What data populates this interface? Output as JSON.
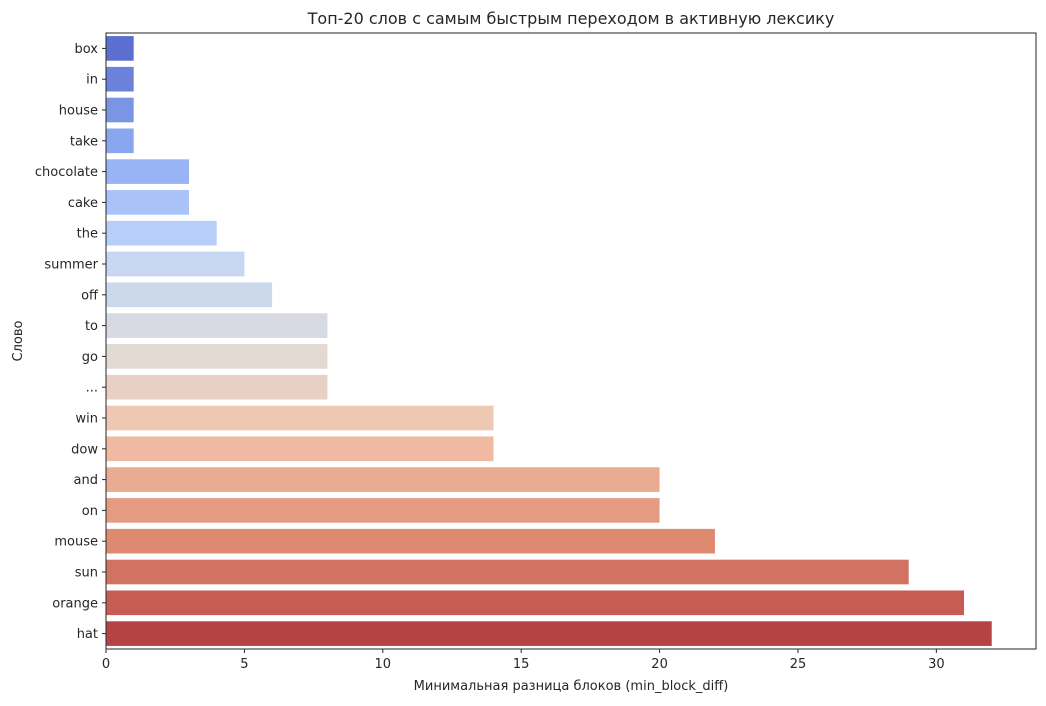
{
  "chart_data": {
    "type": "bar",
    "orientation": "horizontal",
    "title": "Топ-20 слов с самым быстрым переходом в активную лексику",
    "xlabel": "Минимальная разница блоков (min_block_diff)",
    "ylabel": "Слово",
    "xlim": [
      0,
      33.6
    ],
    "xticks": [
      0,
      5,
      10,
      15,
      20,
      25,
      30
    ],
    "grid": false,
    "legend": "none",
    "categories": [
      "box",
      "in",
      "house",
      "take",
      "chocolate",
      "cake",
      "the",
      "summer",
      "off",
      "to",
      "go",
      "...",
      "win",
      "dow",
      "and",
      "on",
      "mouse",
      "sun",
      "orange",
      "hat"
    ],
    "values": [
      1,
      1,
      1,
      1,
      3,
      3,
      4,
      5,
      6,
      8,
      8,
      8,
      14,
      14,
      20,
      20,
      22,
      29,
      31,
      32
    ],
    "colors": [
      "#5a6fd0",
      "#6b82db",
      "#7b95e5",
      "#8aa6ee",
      "#99b4f4",
      "#a9c2f8",
      "#b8cefa",
      "#c6d6f3",
      "#ccd9ed",
      "#d7dae3",
      "#e3d9d3",
      "#e9d0c4",
      "#eec8b3",
      "#f0b9a1",
      "#e9ac91",
      "#e49b81",
      "#dd8a71",
      "#d17262",
      "#c65c53",
      "#b54344"
    ]
  }
}
